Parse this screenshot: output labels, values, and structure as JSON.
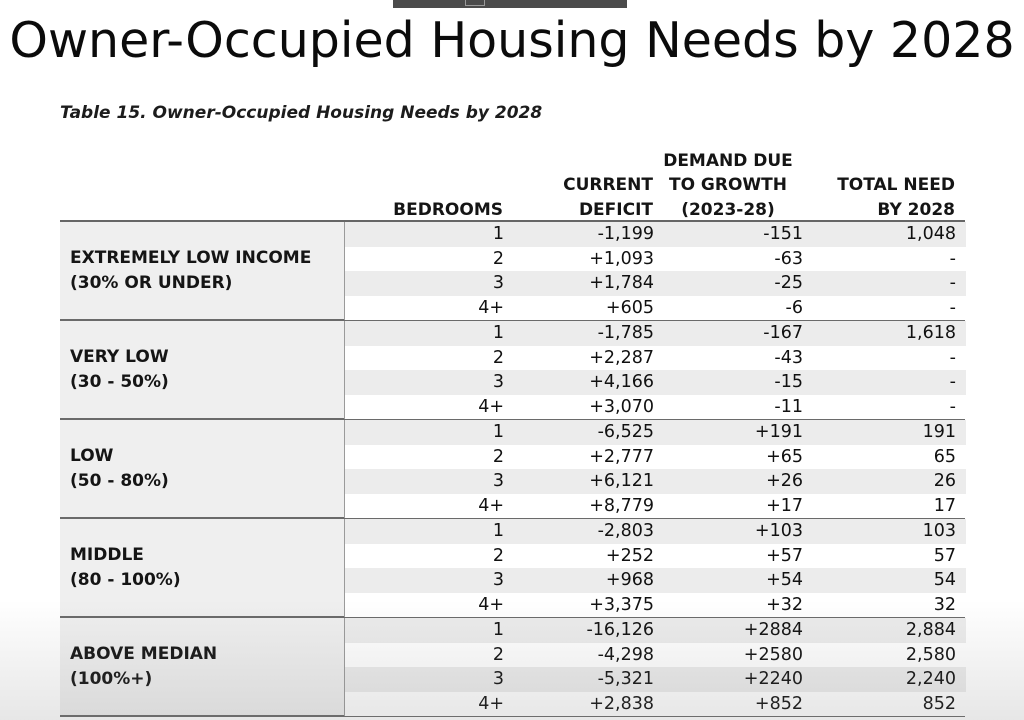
{
  "slide": {
    "title": "Owner-Occupied Housing Needs by 2028"
  },
  "table": {
    "caption": "Table 15. Owner-Occupied Housing Needs by 2028",
    "columns": {
      "bedrooms": [
        "BEDROOMS"
      ],
      "current_deficit": [
        "CURRENT",
        "DEFICIT"
      ],
      "demand_due_to_growth": [
        "DEMAND DUE",
        "TO GROWTH",
        "(2023-28)"
      ],
      "total_need": [
        "TOTAL NEED",
        "BY 2028"
      ]
    },
    "groups": [
      {
        "label_line1": "EXTREMELY LOW INCOME",
        "label_line2": "(30% OR UNDER)",
        "rows": [
          {
            "bedrooms": "1",
            "current_deficit": "-1,199",
            "demand": "-151",
            "total": "1,048"
          },
          {
            "bedrooms": "2",
            "current_deficit": "+1,093",
            "demand": "-63",
            "total": "-"
          },
          {
            "bedrooms": "3",
            "current_deficit": "+1,784",
            "demand": "-25",
            "total": "-"
          },
          {
            "bedrooms": "4+",
            "current_deficit": "+605",
            "demand": "-6",
            "total": "-"
          }
        ]
      },
      {
        "label_line1": "VERY LOW",
        "label_line2": "(30 - 50%)",
        "rows": [
          {
            "bedrooms": "1",
            "current_deficit": "-1,785",
            "demand": "-167",
            "total": "1,618"
          },
          {
            "bedrooms": "2",
            "current_deficit": "+2,287",
            "demand": "-43",
            "total": "-"
          },
          {
            "bedrooms": "3",
            "current_deficit": "+4,166",
            "demand": "-15",
            "total": "-"
          },
          {
            "bedrooms": "4+",
            "current_deficit": "+3,070",
            "demand": "-11",
            "total": "-"
          }
        ]
      },
      {
        "label_line1": "LOW",
        "label_line2": "(50 - 80%)",
        "rows": [
          {
            "bedrooms": "1",
            "current_deficit": "-6,525",
            "demand": "+191",
            "total": "191"
          },
          {
            "bedrooms": "2",
            "current_deficit": "+2,777",
            "demand": "+65",
            "total": "65"
          },
          {
            "bedrooms": "3",
            "current_deficit": "+6,121",
            "demand": "+26",
            "total": "26"
          },
          {
            "bedrooms": "4+",
            "current_deficit": "+8,779",
            "demand": "+17",
            "total": "17"
          }
        ]
      },
      {
        "label_line1": "MIDDLE",
        "label_line2": "(80 - 100%)",
        "rows": [
          {
            "bedrooms": "1",
            "current_deficit": "-2,803",
            "demand": "+103",
            "total": "103"
          },
          {
            "bedrooms": "2",
            "current_deficit": "+252",
            "demand": "+57",
            "total": "57"
          },
          {
            "bedrooms": "3",
            "current_deficit": "+968",
            "demand": "+54",
            "total": "54"
          },
          {
            "bedrooms": "4+",
            "current_deficit": "+3,375",
            "demand": "+32",
            "total": "32"
          }
        ]
      },
      {
        "label_line1": "ABOVE MEDIAN",
        "label_line2": "(100%+)",
        "rows": [
          {
            "bedrooms": "1",
            "current_deficit": "-16,126",
            "demand": "+2884",
            "total": "2,884"
          },
          {
            "bedrooms": "2",
            "current_deficit": "-4,298",
            "demand": "+2580",
            "total": "2,580"
          },
          {
            "bedrooms": "3",
            "current_deficit": "-5,321",
            "demand": "+2240",
            "total": "2,240"
          },
          {
            "bedrooms": "4+",
            "current_deficit": "+2,838",
            "demand": "+852",
            "total": "852"
          }
        ]
      }
    ]
  }
}
